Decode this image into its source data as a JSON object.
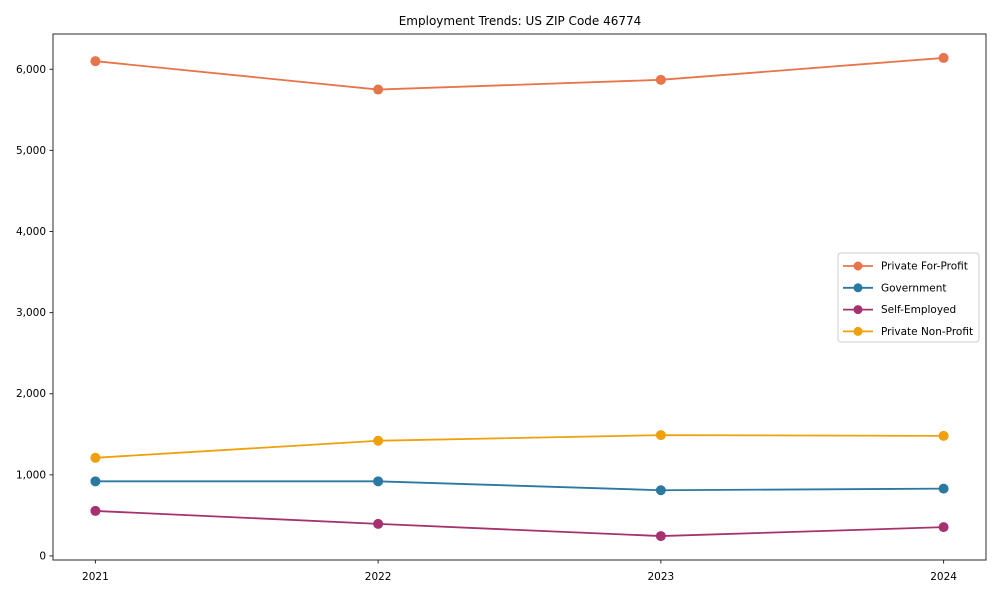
{
  "chart_data": {
    "type": "line",
    "title": "Employment Trends: US ZIP Code 46774",
    "xlabel": "",
    "ylabel": "",
    "categories": [
      "2021",
      "2022",
      "2023",
      "2024"
    ],
    "series": [
      {
        "name": "Private For-Profit",
        "color": "#e8744a",
        "values": [
          6100,
          5750,
          5870,
          6140
        ]
      },
      {
        "name": "Government",
        "color": "#2b78a0",
        "values": [
          920,
          920,
          810,
          830
        ]
      },
      {
        "name": "Self-Employed",
        "color": "#a5326e",
        "values": [
          555,
          395,
          245,
          355
        ]
      },
      {
        "name": "Private Non-Profit",
        "color": "#f0a00a",
        "values": [
          1210,
          1420,
          1490,
          1480
        ]
      }
    ],
    "yticks": [
      0,
      1000,
      2000,
      3000,
      4000,
      5000,
      6000
    ],
    "ytick_labels": [
      "0",
      "1,000",
      "2,000",
      "3,000",
      "4,000",
      "5,000",
      "6,000"
    ],
    "ylim": [
      -50,
      6435
    ],
    "xlim": [
      -0.15,
      3.15
    ],
    "grid": false,
    "legend_position": "center-right",
    "marker": "circle",
    "colors": {
      "background": "#ffffff",
      "spine": "#2b2b2b",
      "tick_text": "#000000",
      "legend_border": "#cccccc",
      "legend_background": "#ffffff"
    }
  }
}
